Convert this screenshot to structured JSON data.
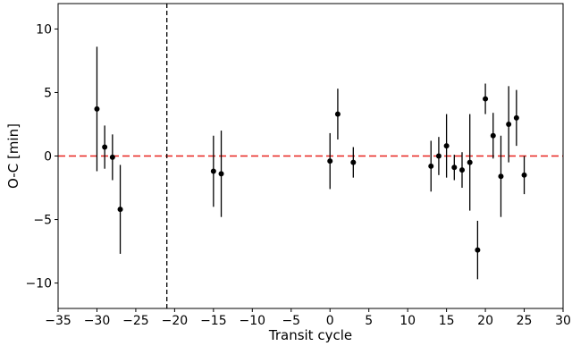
{
  "chart_data": {
    "type": "scatter",
    "title": "",
    "xlabel": "Transit cycle",
    "ylabel": "O-C [min]",
    "xlim": [
      -35,
      30
    ],
    "ylim": [
      -12,
      12
    ],
    "xticks": [
      -35,
      -30,
      -25,
      -20,
      -15,
      -10,
      -5,
      0,
      5,
      10,
      15,
      20,
      25,
      30
    ],
    "yticks": [
      -10,
      -5,
      0,
      5,
      10
    ],
    "xtick_labels": [
      "−35",
      "−30",
      "−25",
      "−20",
      "−15",
      "−10",
      "−5",
      "0",
      "5",
      "10",
      "15",
      "20",
      "25",
      "30"
    ],
    "ytick_labels": [
      "−10",
      "−5",
      "0",
      "5",
      "10"
    ],
    "grid": false,
    "reference_lines": [
      {
        "orientation": "horizontal",
        "value": 0,
        "color": "#e8231f",
        "style": "dashed"
      },
      {
        "orientation": "vertical",
        "value": -21,
        "color": "#000000",
        "style": "dashed"
      }
    ],
    "marker_color": "#000000",
    "points": [
      {
        "x": -30,
        "y": 3.7,
        "err": 4.9
      },
      {
        "x": -29,
        "y": 0.7,
        "err": 1.7
      },
      {
        "x": -28,
        "y": -0.1,
        "err": 1.8
      },
      {
        "x": -27,
        "y": -4.2,
        "err": 3.5
      },
      {
        "x": -15,
        "y": -1.2,
        "err": 2.8
      },
      {
        "x": -14,
        "y": -1.4,
        "err": 3.4
      },
      {
        "x": 0,
        "y": -0.4,
        "err": 2.2
      },
      {
        "x": 1,
        "y": 3.3,
        "err": 2.0
      },
      {
        "x": 3,
        "y": -0.5,
        "err": 1.2
      },
      {
        "x": 13,
        "y": -0.8,
        "err": 2.0
      },
      {
        "x": 14,
        "y": 0.0,
        "err": 1.5
      },
      {
        "x": 15,
        "y": 0.8,
        "err": 2.5
      },
      {
        "x": 16,
        "y": -0.9,
        "err": 1.0
      },
      {
        "x": 17,
        "y": -1.1,
        "err": 1.4
      },
      {
        "x": 18,
        "y": -0.5,
        "err": 3.8
      },
      {
        "x": 19,
        "y": -7.4,
        "err": 2.3
      },
      {
        "x": 20,
        "y": 4.5,
        "err": 1.2
      },
      {
        "x": 21,
        "y": 1.6,
        "err": 1.8
      },
      {
        "x": 22,
        "y": -1.6,
        "err": 3.2
      },
      {
        "x": 23,
        "y": 2.5,
        "err": 3.0
      },
      {
        "x": 24,
        "y": 3.0,
        "err": 2.2
      },
      {
        "x": 25,
        "y": -1.5,
        "err": 1.5
      }
    ]
  }
}
